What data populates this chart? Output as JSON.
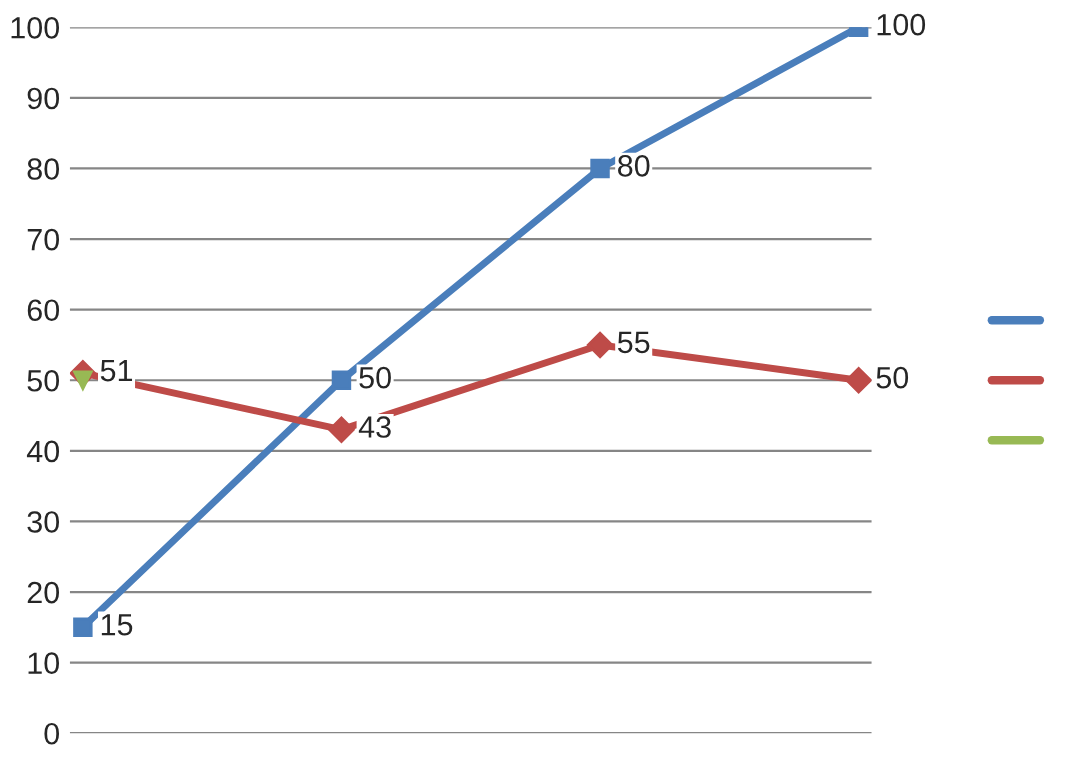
{
  "chart_data": {
    "type": "line",
    "categories": [
      null,
      null,
      null,
      null
    ],
    "series": [
      {
        "color": "#4a7ebb",
        "values": [
          15,
          50,
          80,
          100
        ],
        "marker": "square",
        "value_labels": [
          "15",
          "50",
          "80",
          "100"
        ]
      },
      {
        "color": "#be4b48",
        "values": [
          51,
          43,
          55,
          50
        ],
        "marker": "diamond",
        "value_labels": [
          "51",
          "43",
          "55",
          "50"
        ]
      },
      {
        "color": "#98b954",
        "values": [
          50,
          null,
          null,
          null
        ],
        "marker": "triangle",
        "value_labels": [
          null,
          null,
          null,
          null
        ]
      }
    ],
    "ylim": [
      0,
      100
    ],
    "yticks": [
      0,
      10,
      20,
      30,
      40,
      50,
      60,
      70,
      80,
      90,
      100
    ],
    "grid": "y"
  }
}
